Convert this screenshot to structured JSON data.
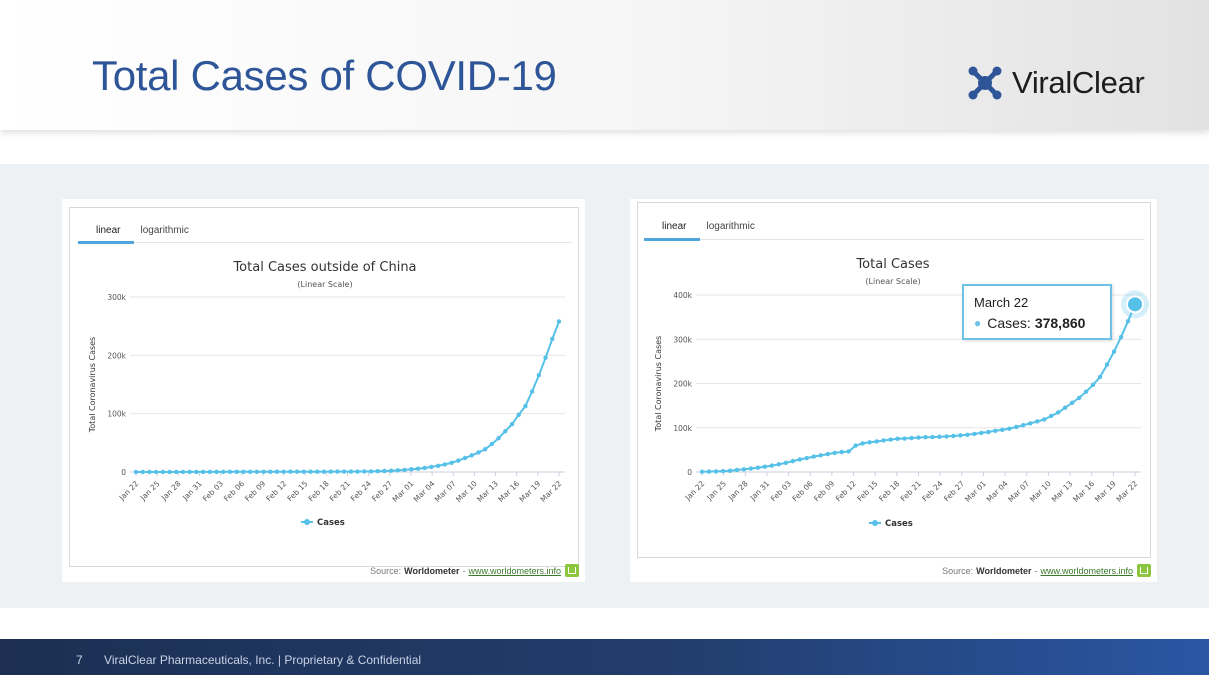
{
  "slide": {
    "title": "Total Cases of COVID-19",
    "logo_text": "ViralClear",
    "footer": {
      "page": "7",
      "text": "ViralClear Pharmaceuticals, Inc. | Proprietary & Confidential"
    }
  },
  "colors": {
    "title": "#2e5597",
    "series": "#55c0e8",
    "tooltip_border": "#6cc3e4",
    "footer": "#223d6c"
  },
  "charts": [
    {
      "tabs": [
        "linear",
        "logarithmic"
      ],
      "active_tab": "linear",
      "source_label": "Source:",
      "source_name": "Worldometer",
      "source_sep": "-",
      "source_link": "www.worldometers.info"
    },
    {
      "tabs": [
        "linear",
        "logarithmic"
      ],
      "active_tab": "linear",
      "source_label": "Source:",
      "source_name": "Worldometer",
      "source_sep": "-",
      "source_link": "www.worldometers.info",
      "tooltip": {
        "date": "March 22",
        "label": "Cases:",
        "value": "378,860"
      }
    }
  ],
  "chart_data": [
    {
      "type": "line",
      "title": "Total Cases outside of China",
      "subtitle": "(Linear Scale)",
      "ylabel": "Total Coronavirus Cases",
      "xlabel": "",
      "ylim": [
        0,
        300000
      ],
      "yticks": [
        0,
        100000,
        200000,
        300000
      ],
      "ytick_labels": [
        "0",
        "100k",
        "200k",
        "300k"
      ],
      "xtick_labels": [
        "Jan 22",
        "Jan 25",
        "Jan 28",
        "Jan 31",
        "Feb 03",
        "Feb 06",
        "Feb 09",
        "Feb 12",
        "Feb 15",
        "Feb 18",
        "Feb 21",
        "Feb 24",
        "Feb 27",
        "Mar 01",
        "Mar 04",
        "Mar 07",
        "Mar 10",
        "Mar 13",
        "Mar 16",
        "Mar 19",
        "Mar 22"
      ],
      "legend": "bottom-center",
      "grid": true,
      "series": [
        {
          "name": "Cases",
          "values": [
            10,
            15,
            20,
            30,
            40,
            55,
            70,
            85,
            110,
            140,
            160,
            180,
            200,
            230,
            260,
            290,
            310,
            330,
            350,
            360,
            390,
            420,
            440,
            460,
            480,
            500,
            520,
            550,
            580,
            610,
            650,
            690,
            720,
            790,
            900,
            1050,
            1300,
            1700,
            2200,
            2800,
            3600,
            4700,
            5600,
            6900,
            8700,
            10600,
            13000,
            15800,
            19500,
            24000,
            28500,
            33500,
            39000,
            48000,
            58000,
            70000,
            82000,
            98000,
            113000,
            138000,
            166000,
            196000,
            228000,
            258000
          ]
        }
      ]
    },
    {
      "type": "line",
      "title": "Total Cases",
      "subtitle": "(Linear Scale)",
      "ylabel": "Total Coronavirus Cases",
      "xlabel": "",
      "ylim": [
        0,
        400000
      ],
      "yticks": [
        0,
        100000,
        200000,
        300000,
        400000
      ],
      "ytick_labels": [
        "0",
        "100k",
        "200k",
        "300k",
        "400k"
      ],
      "xtick_labels": [
        "Jan 22",
        "Jan 25",
        "Jan 28",
        "Jan 31",
        "Feb 03",
        "Feb 06",
        "Feb 09",
        "Feb 12",
        "Feb 15",
        "Feb 18",
        "Feb 21",
        "Feb 24",
        "Feb 27",
        "Mar 01",
        "Mar 04",
        "Mar 07",
        "Mar 10",
        "Mar 13",
        "Mar 16",
        "Mar 19",
        "Mar 22"
      ],
      "legend": "bottom-center",
      "grid": true,
      "series": [
        {
          "name": "Cases",
          "values": [
            580,
            845,
            1317,
            2015,
            2800,
            4581,
            6058,
            7813,
            9823,
            11950,
            14553,
            17391,
            20630,
            24554,
            28276,
            31481,
            34886,
            37558,
            40554,
            43103,
            45171,
            46397,
            59738,
            64538,
            67067,
            69006,
            71221,
            73270,
            75120,
            75628,
            76807,
            77760,
            78620,
            78972,
            79542,
            80365,
            81372,
            82741,
            84114,
            85997,
            88355,
            90373,
            93062,
            95189,
            97855,
            101804,
            105816,
            109813,
            114187,
            118690,
            126633,
            134567,
            145202,
            156396,
            167409,
            181511,
            197113,
            214881,
            242704,
            272165,
            304607,
            340697,
            378860
          ]
        }
      ]
    }
  ]
}
